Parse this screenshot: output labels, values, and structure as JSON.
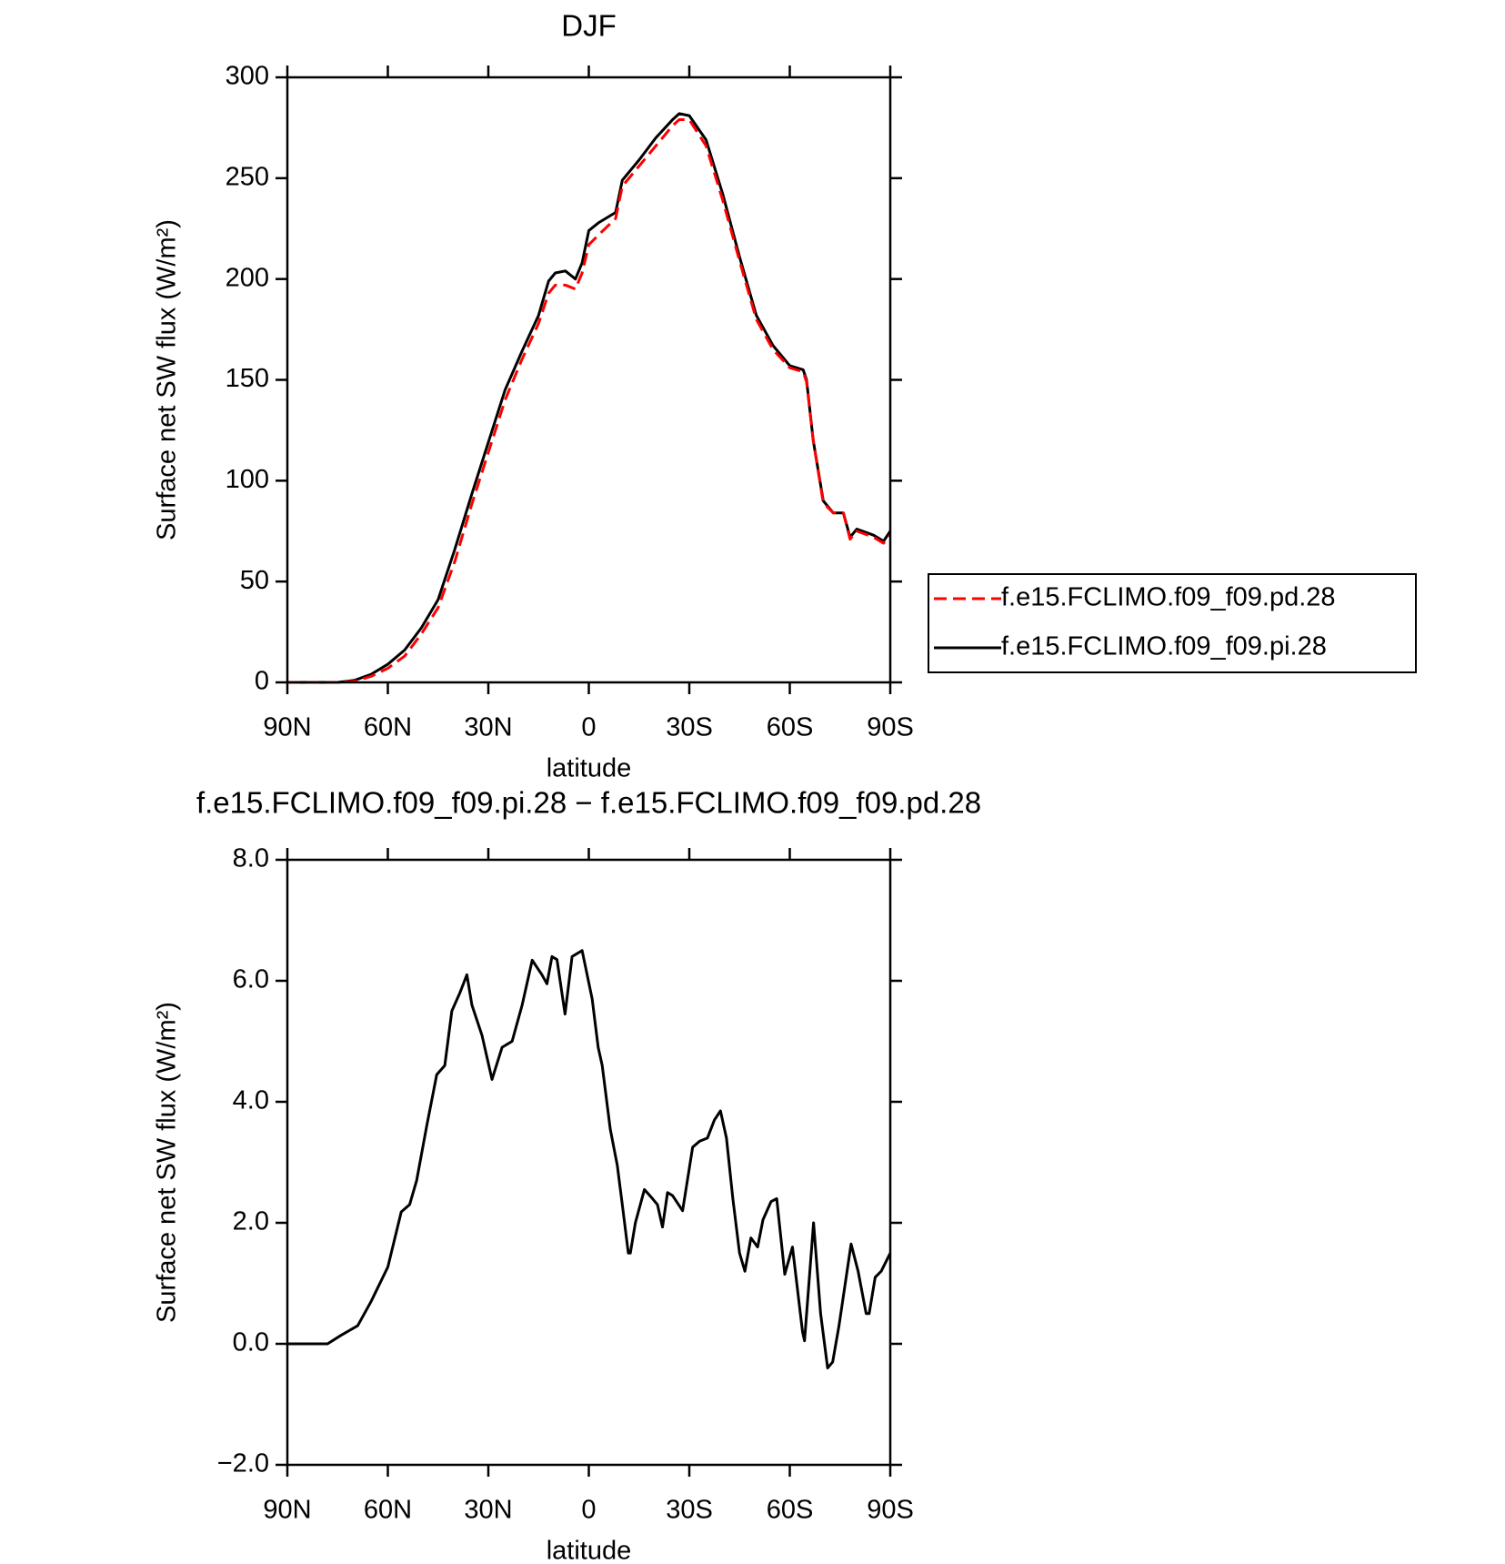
{
  "chart_data": [
    {
      "type": "line",
      "title": "DJF",
      "xlabel": "latitude",
      "ylabel": "Surface net SW flux (W/m²)",
      "x": [
        90,
        80,
        75,
        70,
        65,
        60,
        55,
        50,
        45,
        40,
        35,
        30,
        25,
        20,
        15,
        12,
        10,
        7,
        4,
        2,
        0,
        -3,
        -8,
        -10,
        -15,
        -20,
        -25,
        -27,
        -30,
        -35,
        -40,
        -45,
        -50,
        -55,
        -60,
        -64,
        -65,
        -67,
        -70,
        -73,
        -76,
        -78,
        -80,
        -85,
        -88,
        -90
      ],
      "series": [
        {
          "name": "f.e15.FCLIMO.f09_f09.pd.28",
          "color": "#ff0000",
          "line_style": "dashed",
          "values": [
            0,
            0,
            0,
            0.5,
            3,
            7,
            13,
            24,
            37,
            60,
            88,
            114,
            140,
            160,
            178,
            193,
            197,
            197,
            195,
            203,
            217,
            222,
            230,
            246,
            256,
            266,
            276,
            279,
            279,
            266,
            239,
            209,
            180,
            165,
            156,
            154,
            149,
            120,
            89,
            84,
            84,
            71,
            75,
            72,
            69,
            73
          ]
        },
        {
          "name": "f.e15.FCLIMO.f09_f09.pi.28",
          "color": "#000000",
          "line_style": "solid",
          "values": [
            0,
            0,
            0,
            1,
            4,
            9,
            16,
            27,
            41,
            66,
            93,
            119,
            145,
            164,
            182,
            199,
            203,
            204,
            200,
            208,
            224,
            228,
            233,
            249,
            259,
            270,
            279,
            282,
            281,
            269,
            242,
            211,
            182,
            167,
            157,
            155,
            150,
            120,
            90,
            84,
            84,
            72,
            76,
            73,
            70,
            75
          ]
        }
      ],
      "xlim": [
        90,
        -90
      ],
      "xticks": [
        {
          "value": 90,
          "label": "90N"
        },
        {
          "value": 60,
          "label": "60N"
        },
        {
          "value": 30,
          "label": "30N"
        },
        0,
        {
          "value": -30,
          "label": "30S"
        },
        {
          "value": -60,
          "label": "60S"
        },
        {
          "value": -90,
          "label": "90S"
        }
      ],
      "ylim": [
        0,
        300
      ],
      "yticks": [
        0,
        50,
        100,
        150,
        200,
        250,
        300
      ],
      "legend": "right"
    },
    {
      "type": "line",
      "title": "f.e15.FCLIMO.f09_f09.pi.28 − f.e15.FCLIMO.f09_f09.pd.28",
      "xlabel": "latitude",
      "ylabel": "Surface net SW flux (W/m²)",
      "x": [
        90,
        80,
        78,
        74,
        69,
        65,
        60,
        56,
        53.5,
        51.4,
        48.4,
        45.4,
        43,
        40.9,
        38.5,
        36.4,
        34.9,
        31.9,
        28.9,
        25.9,
        22.9,
        19.9,
        16.9,
        14,
        12.5,
        11,
        9.5,
        7.1,
        5,
        3.5,
        2,
        -1,
        -2.8,
        -4,
        -6.4,
        -8.5,
        -10,
        -11.8,
        -12.4,
        -13.9,
        -16.6,
        -19,
        -20.5,
        -22,
        -23.5,
        -25,
        -28,
        -31,
        -33.1,
        -35.4,
        -37.5,
        -39.3,
        -41.1,
        -43,
        -45,
        -46.6,
        -48.4,
        -50.4,
        -52,
        -54.4,
        -56.1,
        -58.5,
        -60.8,
        -63.8,
        -64.4,
        -67.1,
        -69.2,
        -71.3,
        -72.8,
        -74.7,
        -78.3,
        -80.4,
        -82.8,
        -83.7,
        -85.5,
        -87.3,
        -90
      ],
      "values": [
        0,
        0,
        0,
        0.14,
        0.3,
        0.7,
        1.27,
        2.18,
        2.3,
        2.7,
        3.6,
        4.45,
        4.6,
        5.5,
        5.8,
        6.1,
        5.6,
        5.1,
        4.37,
        4.9,
        5.0,
        5.6,
        6.34,
        6.1,
        5.95,
        6.4,
        6.35,
        5.45,
        6.4,
        6.45,
        6.5,
        5.7,
        4.9,
        4.6,
        3.55,
        2.95,
        2.3,
        1.5,
        1.5,
        2.0,
        2.55,
        2.4,
        2.3,
        1.93,
        2.5,
        2.45,
        2.2,
        3.25,
        3.35,
        3.4,
        3.7,
        3.85,
        3.4,
        2.4,
        1.5,
        1.2,
        1.75,
        1.6,
        2.05,
        2.35,
        2.4,
        1.15,
        1.6,
        0.2,
        0.05,
        2.0,
        0.5,
        -0.4,
        -0.3,
        0.3,
        1.65,
        1.2,
        0.5,
        0.5,
        1.1,
        1.2,
        1.5
      ],
      "color": "#000000",
      "xlim": [
        90,
        -90
      ],
      "xticks": [
        {
          "value": 90,
          "label": "90N"
        },
        {
          "value": 60,
          "label": "60N"
        },
        {
          "value": 30,
          "label": "30N"
        },
        0,
        {
          "value": -30,
          "label": "30S"
        },
        {
          "value": -60,
          "label": "60S"
        },
        {
          "value": -90,
          "label": "90S"
        }
      ],
      "ylim": [
        -2,
        8
      ],
      "yticks": [
        {
          "value": -2,
          "label": "−2.0"
        },
        {
          "value": 0,
          "label": "0.0"
        },
        {
          "value": 2,
          "label": "2.0"
        },
        {
          "value": 4,
          "label": "4.0"
        },
        {
          "value": 6,
          "label": "6.0"
        },
        {
          "value": 8,
          "label": "8.0"
        }
      ]
    }
  ]
}
